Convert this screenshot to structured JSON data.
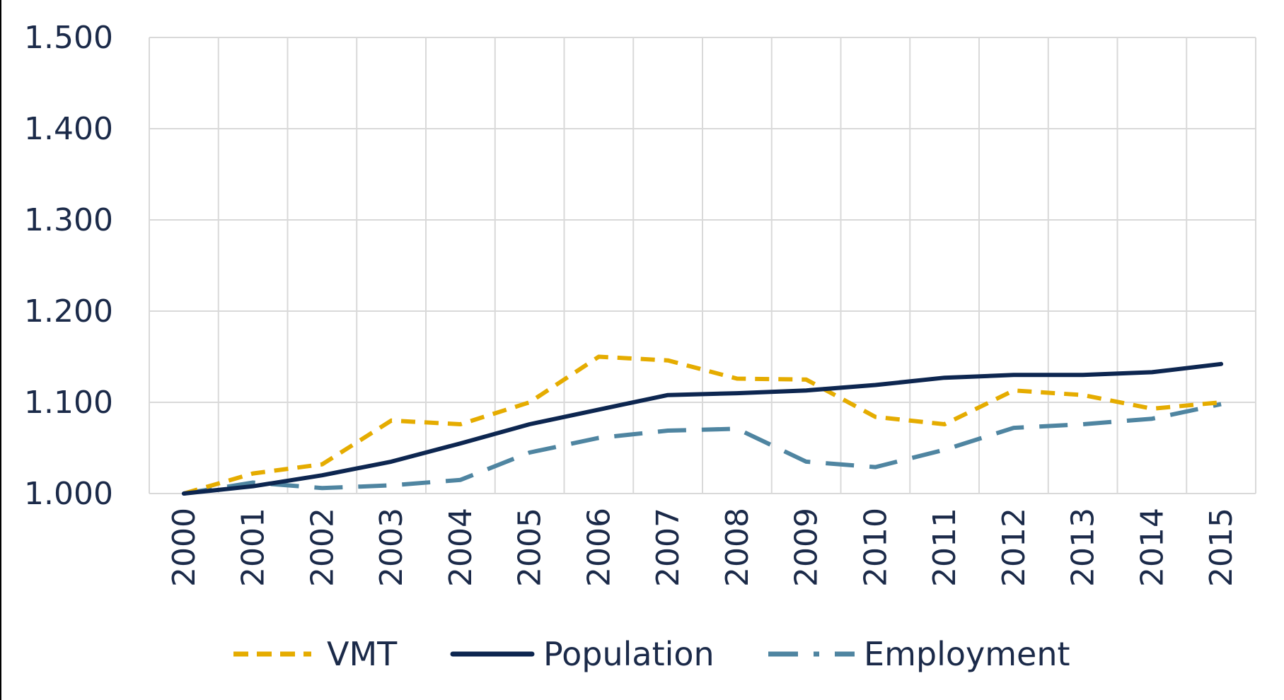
{
  "chart_data": {
    "type": "line",
    "title": "",
    "xlabel": "",
    "ylabel": "",
    "ylim": [
      1.0,
      1.5
    ],
    "yticks": [
      "1.000",
      "1.100",
      "1.200",
      "1.300",
      "1.400",
      "1.500"
    ],
    "ytick_values": [
      1.0,
      1.1,
      1.2,
      1.3,
      1.4,
      1.5
    ],
    "categories": [
      "2000",
      "2001",
      "2002",
      "2003",
      "2004",
      "2005",
      "2006",
      "2007",
      "2008",
      "2009",
      "2010",
      "2011",
      "2012",
      "2013",
      "2014",
      "2015"
    ],
    "grid": true,
    "legend_position": "bottom",
    "series": [
      {
        "name": "VMT",
        "color": "#e5ac00",
        "style": "dashed",
        "values": [
          1.0,
          1.022,
          1.032,
          1.08,
          1.076,
          1.1,
          1.15,
          1.146,
          1.126,
          1.125,
          1.084,
          1.076,
          1.113,
          1.108,
          1.093,
          1.1
        ]
      },
      {
        "name": "Population",
        "color": "#0d2650",
        "style": "solid",
        "values": [
          1.0,
          1.008,
          1.02,
          1.035,
          1.055,
          1.076,
          1.092,
          1.108,
          1.11,
          1.113,
          1.119,
          1.127,
          1.13,
          1.13,
          1.133,
          1.142
        ]
      },
      {
        "name": "Employment",
        "color": "#4f85a1",
        "style": "long-dashed",
        "values": [
          1.0,
          1.012,
          1.006,
          1.009,
          1.015,
          1.045,
          1.061,
          1.069,
          1.071,
          1.035,
          1.029,
          1.048,
          1.072,
          1.076,
          1.082,
          1.098
        ]
      }
    ]
  }
}
